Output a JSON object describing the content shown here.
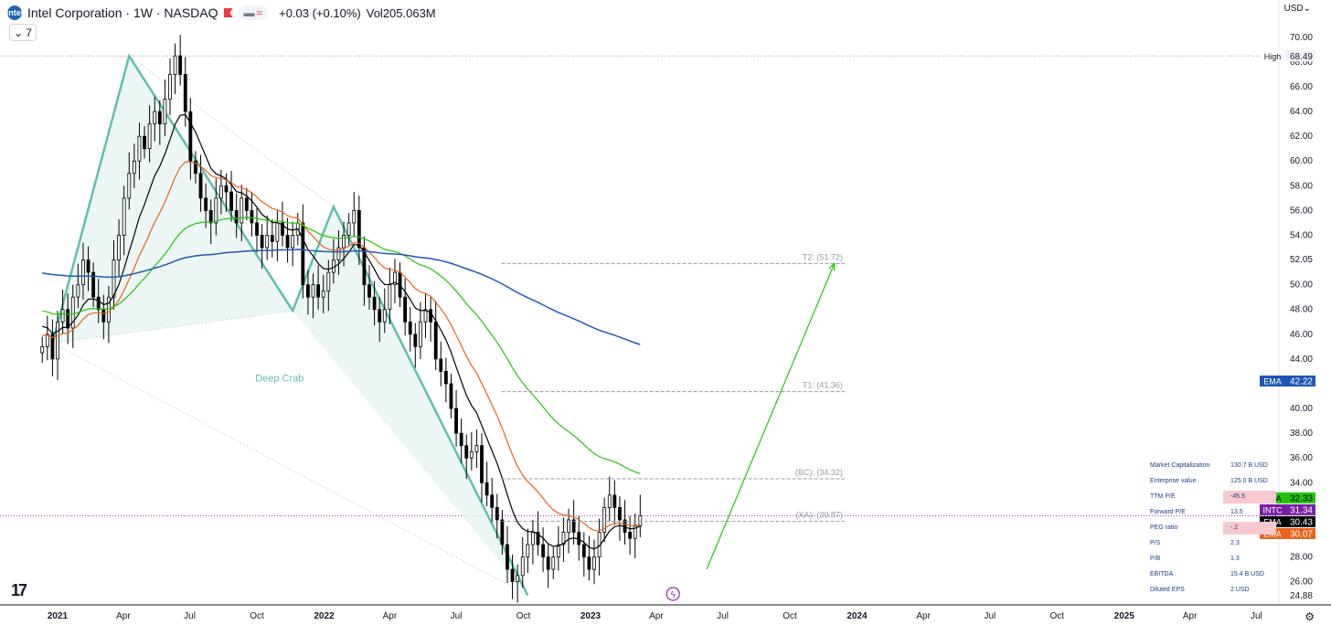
{
  "header": {
    "logo_text": "intel",
    "title": "Intel Corporation · 1W · NASDAQ",
    "change": "+0.03 (+0.10%)",
    "volume_label": "Vol",
    "volume_value": "205.063M",
    "indicators_count": "7",
    "currency": "USD"
  },
  "chart_data": {
    "type": "candlestick",
    "symbol": "INTC",
    "interval": "1W",
    "ylim": [
      24.88,
      70.0
    ],
    "y_ticks": [
      70,
      68,
      66,
      64,
      62,
      60,
      58,
      56,
      54,
      52.05,
      50,
      48,
      46,
      44,
      40,
      38,
      36,
      34,
      28,
      26,
      24.88
    ],
    "y_tick_labels": [
      "70.00",
      "68.00",
      "66.00",
      "64.00",
      "62.00",
      "60.00",
      "58.00",
      "56.00",
      "54.00",
      "52.05",
      "50.00",
      "48.00",
      "46.00",
      "44.00",
      "40.00",
      "38.00",
      "36.00",
      "34.00",
      "28.00",
      "26.00",
      "24.88"
    ],
    "x_ticks": [
      {
        "date": "2021-01-01",
        "label": "2021",
        "bold": true
      },
      {
        "date": "2021-04-01",
        "label": "Apr"
      },
      {
        "date": "2021-07-01",
        "label": "Jul"
      },
      {
        "date": "2021-10-01",
        "label": "Oct"
      },
      {
        "date": "2022-01-01",
        "label": "2022",
        "bold": true
      },
      {
        "date": "2022-04-01",
        "label": "Apr"
      },
      {
        "date": "2022-07-01",
        "label": "Jul"
      },
      {
        "date": "2022-10-01",
        "label": "Oct"
      },
      {
        "date": "2023-01-01",
        "label": "2023",
        "bold": true
      },
      {
        "date": "2023-04-01",
        "label": "Apr"
      },
      {
        "date": "2023-07-01",
        "label": "Jul"
      },
      {
        "date": "2023-10-01",
        "label": "Oct"
      },
      {
        "date": "2024-01-01",
        "label": "2024",
        "bold": true
      },
      {
        "date": "2024-04-01",
        "label": "Apr"
      },
      {
        "date": "2024-07-01",
        "label": "Jul"
      },
      {
        "date": "2024-10-01",
        "label": "Oct"
      },
      {
        "date": "2025-01-01",
        "label": "2025",
        "bold": true
      },
      {
        "date": "2025-04-01",
        "label": "Apr"
      },
      {
        "date": "2025-07-01",
        "label": "Jul"
      }
    ],
    "price_closes": [
      45,
      46,
      44,
      47,
      48,
      46.5,
      49,
      50,
      52,
      51,
      49,
      48,
      47,
      49,
      52,
      54,
      57,
      59,
      60,
      62,
      61,
      63,
      64,
      63,
      65,
      67,
      68.5,
      67,
      64,
      60,
      59,
      57,
      56,
      55,
      57,
      58,
      57.5,
      56,
      55,
      57,
      56,
      55,
      54,
      53,
      54,
      53.5,
      55,
      54,
      53,
      54,
      55,
      50,
      49,
      50,
      49,
      49.5,
      51,
      52,
      53,
      54,
      55,
      56,
      53,
      50,
      49,
      48,
      47,
      48,
      50,
      51,
      49,
      47,
      46,
      45,
      47,
      48,
      47,
      44,
      43,
      42,
      40,
      38,
      37,
      36,
      36.5,
      37,
      34,
      33,
      32,
      31,
      29,
      27,
      26,
      26.5,
      28,
      29,
      30,
      29,
      28,
      27,
      28,
      29,
      30,
      31,
      30,
      29,
      28,
      27,
      28,
      30,
      32,
      33,
      32,
      31,
      30,
      29.5,
      30.5,
      31.34
    ],
    "price_start": "2020-12-11",
    "ohlc_note": "weekly closes approximated; candle opens/highs/lows derived",
    "series": [
      {
        "name": "EMA",
        "color": "#1f57b5",
        "last": 42.22
      },
      {
        "name": "EMA",
        "color": "#22c50b",
        "last": 32.33
      },
      {
        "name": "EMA",
        "color": "#000000",
        "last": 30.43
      },
      {
        "name": "EMA",
        "color": "#e8621b",
        "last": 30.07
      }
    ],
    "price_labels": [
      {
        "text": "High",
        "value": "68.49",
        "price": 68.49,
        "bg": "#ffffff",
        "fg": "#131722"
      },
      {
        "text": "EMA",
        "value": "42.22",
        "price": 42.22,
        "bg": "#1f57b5",
        "fg": "#ffffff"
      },
      {
        "text": "EMA",
        "value": "32.33",
        "price": 32.33,
        "bg": "#22c50b",
        "fg": "#000000"
      },
      {
        "text": "INTC",
        "value": "31.34",
        "price": 31.34,
        "bg": "#7b1fa2",
        "fg": "#ffffff"
      },
      {
        "text": "EMA",
        "value": "30.43",
        "price": 30.43,
        "bg": "#000000",
        "fg": "#ffffff"
      },
      {
        "text": "EMA",
        "value": "30.07",
        "price": 30.07,
        "bg": "#e8621b",
        "fg": "#ffffff"
      }
    ],
    "pattern": {
      "name": "Deep Crab",
      "color": "#5fbfae",
      "points": [
        {
          "date": "2020-12-25",
          "price": 45.3
        },
        {
          "date": "2021-04-09",
          "price": 68.49
        },
        {
          "date": "2021-11-19",
          "price": 47.9
        },
        {
          "date": "2022-01-14",
          "price": 56.3
        },
        {
          "date": "2022-10-07",
          "price": 24.9
        }
      ]
    },
    "targets": [
      {
        "label": "T2: (51.72)",
        "price": 51.72
      },
      {
        "label": "T1: (41.36)",
        "price": 41.36
      },
      {
        "label": "(BC): (34.32)",
        "price": 34.32
      },
      {
        "label": "(XA): (30.87)",
        "price": 30.87
      }
    ],
    "projection": {
      "from_date": "2023-06-09",
      "from_price": 27.0,
      "to_date": "2023-12-01",
      "to_price": 51.72,
      "color": "#22c50b"
    }
  },
  "fundamentals": {
    "rows": [
      {
        "label": "Market Capitalization",
        "value": "130.7 B  USD",
        "highlight": false
      },
      {
        "label": "Enterprise value",
        "value": "125.0 B  USD",
        "highlight": false
      },
      {
        "label": "TTM P/E",
        "value": "-45.5",
        "highlight": true
      },
      {
        "label": "Forward P/E",
        "value": "13.5",
        "highlight": false
      },
      {
        "label": "PEG ratio",
        "value": "-.2",
        "highlight": true
      },
      {
        "label": "P/S",
        "value": "2.3",
        "highlight": false
      },
      {
        "label": "P/B",
        "value": "1.3",
        "highlight": false
      },
      {
        "label": "EBITDA",
        "value": "15.4 B  USD",
        "highlight": false
      },
      {
        "label": "Diluted EPS",
        "value": "2  USD",
        "highlight": false
      }
    ]
  },
  "branding": {
    "tv_logo": "17"
  }
}
